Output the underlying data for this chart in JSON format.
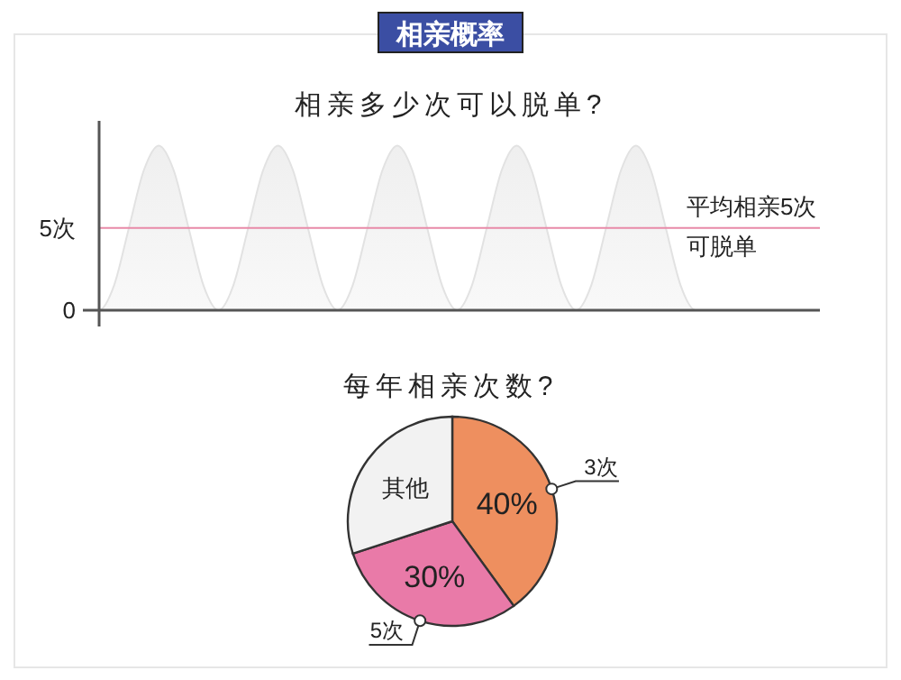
{
  "chart_data": [
    {
      "type": "area",
      "title": "相亲概率",
      "subtitle": "相亲多少次可以脱单?",
      "categories": [
        null,
        null,
        null,
        null,
        null,
        null,
        null,
        null,
        null,
        null,
        null,
        null,
        null,
        null,
        null,
        null,
        null,
        null,
        null,
        null,
        null,
        null,
        null,
        null,
        null,
        null,
        null,
        null,
        null,
        null,
        null,
        null,
        null,
        null,
        null,
        null,
        null,
        null,
        null,
        null,
        null
      ],
      "series": [
        {
          "color": "#efefef",
          "values": [
            0,
            1.5,
            5,
            8.5,
            10,
            8.5,
            5,
            1.5,
            0,
            1.5,
            5,
            8.5,
            10,
            8.5,
            5,
            1.5,
            0,
            1.5,
            5,
            8.5,
            10,
            8.5,
            5,
            1.5,
            0,
            1.5,
            5,
            8.5,
            10,
            8.5,
            5,
            1.5,
            0,
            1.5,
            5,
            8.5,
            10,
            8.5,
            5,
            1.5,
            0
          ]
        }
      ],
      "ylim": [
        0,
        11.5
      ],
      "yticks": [
        0,
        {
          "value": 5,
          "label": "5次"
        }
      ],
      "grid": false,
      "ref_lines": [
        {
          "axis": "y",
          "value": 5,
          "label": "平均相亲5次可脱单",
          "color": "#e88aa8"
        }
      ]
    },
    {
      "type": "pie",
      "title": "每年相亲次数?",
      "categories": [
        "3次",
        "5次",
        "其他"
      ],
      "values": [
        40,
        30,
        30
      ],
      "colors": [
        "#ee8f5f",
        "#e97aa8",
        "#f2f2f2"
      ],
      "value_labels": [
        "40%",
        "30%",
        null
      ]
    }
  ]
}
